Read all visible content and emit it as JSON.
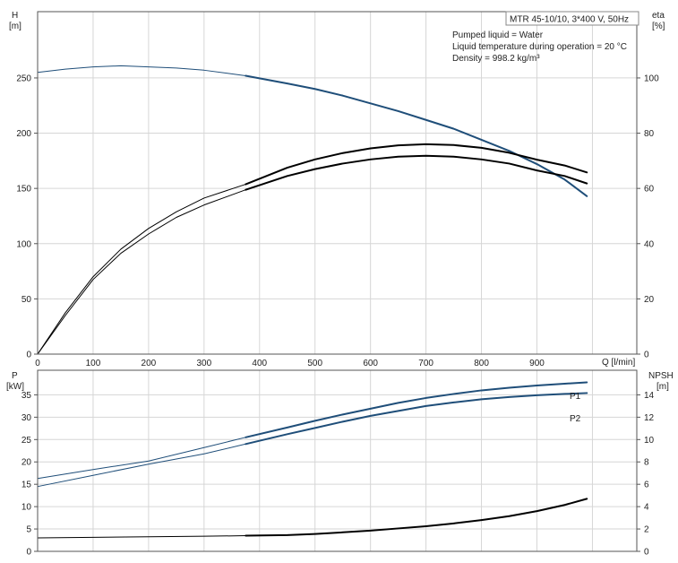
{
  "colors": {
    "blue": "#1f4e79",
    "black": "#000000",
    "grid": "#d6d6d6",
    "frame": "#555555"
  },
  "info": {
    "title": "MTR 45-10/10, 3*400 V, 50Hz",
    "lines": [
      "Pumped liquid = Water",
      "Liquid temperature during operation = 20 °C",
      "Density = 998.2 kg/m³"
    ]
  },
  "chart_data": [
    {
      "type": "line",
      "panel": "top",
      "x_axis": {
        "label": "Q [l/min]",
        "range": [
          0,
          1080
        ],
        "ticks": [
          0,
          100,
          200,
          300,
          400,
          500,
          600,
          700,
          800,
          900
        ]
      },
      "y_left": {
        "label_top": "H",
        "label_unit": "[m]",
        "range": [
          0,
          310
        ],
        "ticks": [
          0,
          50,
          100,
          150,
          200,
          250
        ]
      },
      "y_right": {
        "label_top": "eta",
        "label_unit": "[%]",
        "range": [
          0,
          124
        ],
        "ticks": [
          0,
          20,
          40,
          60,
          80,
          100
        ]
      },
      "grid": true,
      "series": [
        {
          "axis": "left",
          "color": "blue",
          "op_start": 375,
          "x": [
            0,
            50,
            100,
            150,
            200,
            250,
            300,
            375,
            450,
            500,
            550,
            600,
            650,
            700,
            750,
            800,
            850,
            900,
            950,
            990
          ],
          "y": [
            255,
            258,
            260,
            261,
            260,
            259,
            257,
            252,
            245,
            240,
            234,
            227,
            220,
            212,
            204,
            194,
            184,
            172,
            158,
            143
          ]
        },
        {
          "axis": "right",
          "color": "black",
          "op_start": 375,
          "x": [
            0,
            50,
            100,
            150,
            200,
            250,
            300,
            375,
            450,
            500,
            550,
            600,
            650,
            700,
            750,
            800,
            850,
            900,
            950,
            990
          ],
          "y": [
            0,
            15,
            28,
            38,
            45.5,
            51.5,
            56.5,
            61.5,
            67.5,
            70.5,
            72.8,
            74.5,
            75.6,
            76,
            75.7,
            74.7,
            72.9,
            70.4,
            68.3,
            65.8
          ]
        },
        {
          "axis": "right",
          "color": "black",
          "op_start": 375,
          "x": [
            0,
            50,
            100,
            150,
            200,
            250,
            300,
            375,
            450,
            500,
            550,
            600,
            650,
            700,
            750,
            800,
            850,
            900,
            950,
            990
          ],
          "y": [
            0,
            14,
            27,
            36.5,
            43.5,
            49.5,
            54,
            59.5,
            64.5,
            67,
            69,
            70.5,
            71.5,
            71.8,
            71.5,
            70.5,
            69,
            66.5,
            64.5,
            61.8
          ]
        }
      ]
    },
    {
      "type": "line",
      "panel": "bottom",
      "x_axis": {
        "range": [
          0,
          1080
        ]
      },
      "y_left": {
        "label_top": "P",
        "label_unit": "[kW]",
        "range": [
          0,
          40.5
        ],
        "ticks": [
          0,
          5,
          10,
          15,
          20,
          25,
          30,
          35
        ]
      },
      "y_right": {
        "label_top": "NPSH",
        "label_unit": "[m]",
        "range": [
          0,
          16.2
        ],
        "ticks": [
          0,
          2,
          4,
          6,
          8,
          10,
          12,
          14
        ]
      },
      "grid": true,
      "series": [
        {
          "name": "P1",
          "axis": "left",
          "color": "blue",
          "op_start": 375,
          "x": [
            0,
            100,
            200,
            300,
            375,
            450,
            500,
            550,
            600,
            650,
            700,
            750,
            800,
            850,
            900,
            950,
            990
          ],
          "y": [
            16.3,
            18.3,
            20.2,
            23.2,
            25.5,
            27.7,
            29.2,
            30.6,
            31.9,
            33.2,
            34.3,
            35.2,
            36,
            36.6,
            37.1,
            37.5,
            37.8
          ]
        },
        {
          "name": "P2",
          "axis": "left",
          "color": "blue",
          "op_start": 375,
          "x": [
            0,
            100,
            200,
            300,
            375,
            450,
            500,
            550,
            600,
            650,
            700,
            750,
            800,
            850,
            900,
            950,
            990
          ],
          "y": [
            14.5,
            17,
            19.5,
            21.8,
            24,
            26.2,
            27.6,
            29,
            30.3,
            31.4,
            32.5,
            33.3,
            34,
            34.5,
            34.9,
            35.2,
            35.4
          ]
        },
        {
          "axis": "right",
          "color": "black",
          "op_start": 375,
          "x": [
            0,
            100,
            200,
            300,
            375,
            450,
            500,
            550,
            600,
            650,
            700,
            750,
            800,
            850,
            900,
            950,
            990
          ],
          "y": [
            1.2,
            1.25,
            1.3,
            1.35,
            1.4,
            1.45,
            1.55,
            1.7,
            1.85,
            2.05,
            2.25,
            2.5,
            2.8,
            3.15,
            3.6,
            4.15,
            4.7
          ]
        }
      ]
    }
  ]
}
